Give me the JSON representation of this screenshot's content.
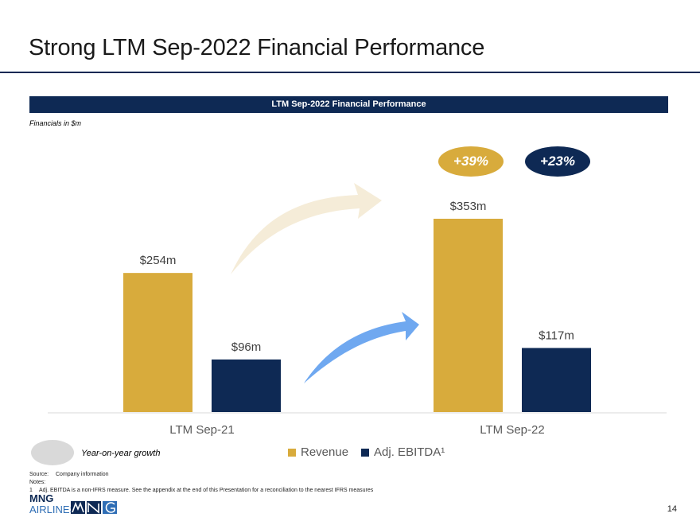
{
  "page": {
    "title": "Strong LTM Sep-2022 Financial Performance",
    "section_header": "LTM Sep-2022 Financial Performance",
    "financials_note": "Financials in $m",
    "page_number": "14"
  },
  "growth": [
    {
      "label": "+39%",
      "color": "#d8ab3c"
    },
    {
      "label": "+23%",
      "color": "#0e2954"
    }
  ],
  "legend": {
    "yoy_label": "Year-on-year growth",
    "yoy_color": "#d9d9d9"
  },
  "footnotes": {
    "source_key": "Source:",
    "source_value": "Company information",
    "notes_key": "Notes:",
    "note1_num": "1",
    "note1_text": "Adj. EBITDA is a non-IFRS measure. See the appendix at the end of this Presentation for a reconciliation to the nearest IFRS measures"
  },
  "logo": {
    "line1": "MNG",
    "line2": "AIRLINES"
  },
  "colors": {
    "revenue": "#d8ab3c",
    "ebitda": "#0e2954",
    "arrow_revenue": "#f5ecd8",
    "arrow_ebitda": "#6fa8f0"
  },
  "chart_data": {
    "type": "bar",
    "categories": [
      "LTM Sep-21",
      "LTM Sep-22"
    ],
    "series": [
      {
        "name": "Revenue",
        "values": [
          254,
          353
        ],
        "labels": [
          "$254m",
          "$353m"
        ]
      },
      {
        "name": "Adj. EBITDA¹",
        "values": [
          96,
          117
        ],
        "labels": [
          "$96m",
          "$117m"
        ]
      }
    ],
    "ylim": [
      0,
      410
    ],
    "grid": false,
    "legend_position": "bottom"
  }
}
